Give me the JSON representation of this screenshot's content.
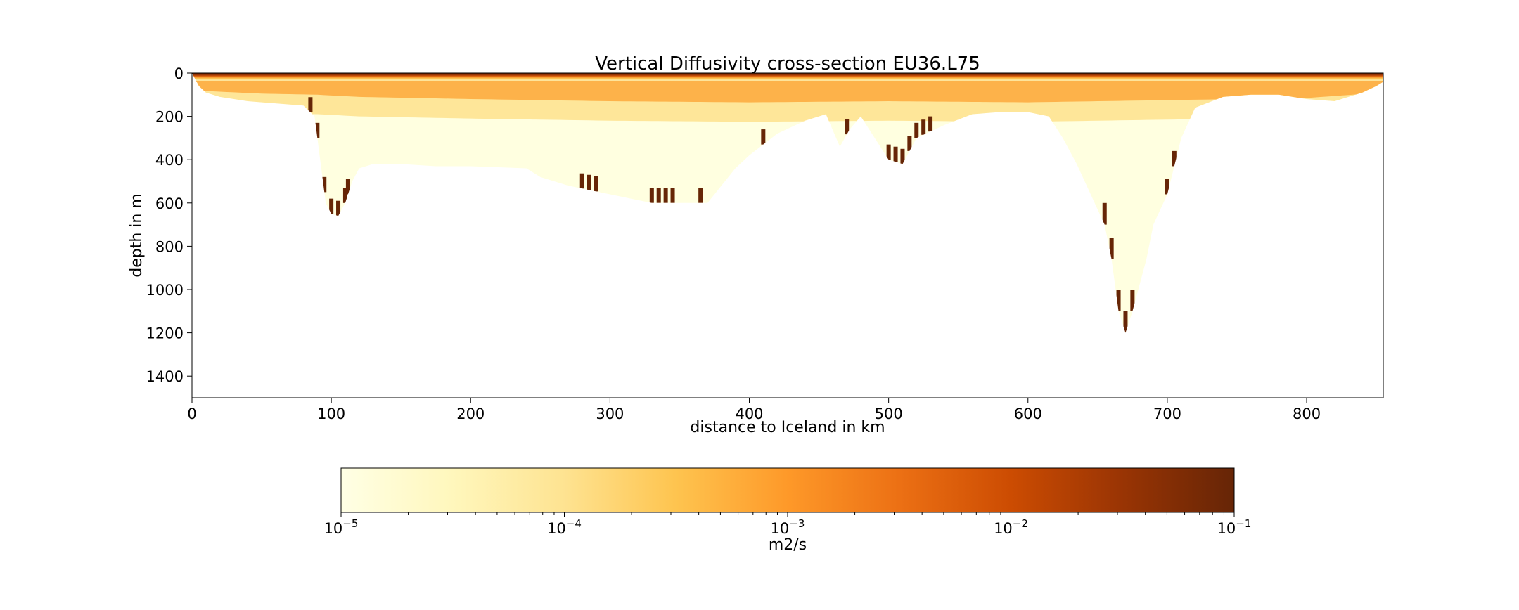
{
  "chart_data": {
    "type": "heatmap",
    "title": "Vertical Diffusivity cross-section EU36.L75",
    "xlabel": "distance to Iceland in km",
    "ylabel": "depth in m",
    "xlim": [
      0,
      855
    ],
    "ylim": [
      1500,
      0
    ],
    "y_inverted": true,
    "x_ticks": [
      "0",
      "100",
      "200",
      "300",
      "400",
      "500",
      "600",
      "700",
      "800"
    ],
    "x_tick_values": [
      0,
      100,
      200,
      300,
      400,
      500,
      600,
      700,
      800
    ],
    "y_ticks": [
      "0",
      "200",
      "400",
      "600",
      "800",
      "1000",
      "1200",
      "1400"
    ],
    "y_tick_values": [
      0,
      200,
      400,
      600,
      800,
      1000,
      1200,
      1400
    ],
    "colorbar": {
      "label": "m2/s",
      "scale": "log",
      "range": [
        1e-05,
        0.1
      ],
      "tick_base": "10",
      "tick_exponents": [
        "−5",
        "−4",
        "−3",
        "−2",
        "−1"
      ],
      "tick_values": [
        1e-05,
        0.0001,
        0.001,
        0.01,
        0.1
      ],
      "colormap": [
        "#ffffe5",
        "#fff7bc",
        "#fee391",
        "#fec44f",
        "#fe9929",
        "#ec7014",
        "#cc4c02",
        "#993404",
        "#662506"
      ]
    },
    "bathymetry_profile": {
      "distance_km": [
        0,
        5,
        10,
        20,
        40,
        60,
        80,
        88,
        92,
        96,
        100,
        105,
        110,
        115,
        120,
        130,
        150,
        175,
        200,
        240,
        250,
        270,
        300,
        330,
        350,
        360,
        370,
        380,
        390,
        400,
        420,
        440,
        455,
        465,
        472,
        480,
        490,
        500,
        510,
        520,
        540,
        560,
        580,
        600,
        615,
        625,
        635,
        645,
        655,
        660,
        665,
        670,
        675,
        680,
        685,
        690,
        700,
        710,
        720,
        740,
        760,
        780,
        800,
        820,
        840,
        850,
        855
      ],
      "bottom_depth_m": [
        0,
        60,
        90,
        110,
        130,
        140,
        150,
        200,
        400,
        600,
        650,
        660,
        600,
        500,
        440,
        420,
        420,
        430,
        430,
        440,
        480,
        520,
        560,
        600,
        600,
        600,
        600,
        520,
        440,
        380,
        280,
        220,
        190,
        340,
        260,
        200,
        300,
        400,
        420,
        300,
        240,
        190,
        180,
        180,
        200,
        300,
        420,
        560,
        700,
        860,
        1100,
        1200,
        1100,
        980,
        860,
        700,
        560,
        300,
        160,
        110,
        100,
        100,
        120,
        130,
        90,
        60,
        40
      ]
    },
    "mixed_layer_depth_m": {
      "distance_km": [
        0,
        50,
        90,
        120,
        200,
        300,
        400,
        500,
        600,
        700,
        800,
        855
      ],
      "depth_m": [
        40,
        55,
        60,
        70,
        80,
        90,
        95,
        90,
        95,
        85,
        75,
        50
      ]
    },
    "notes_visible": "High-diffusivity (~10^-1) surface layer; mid values near 100–200 m; low (~10^-5) interior; dark high-diffusivity cells along steep slopes and deep trough bottom."
  }
}
